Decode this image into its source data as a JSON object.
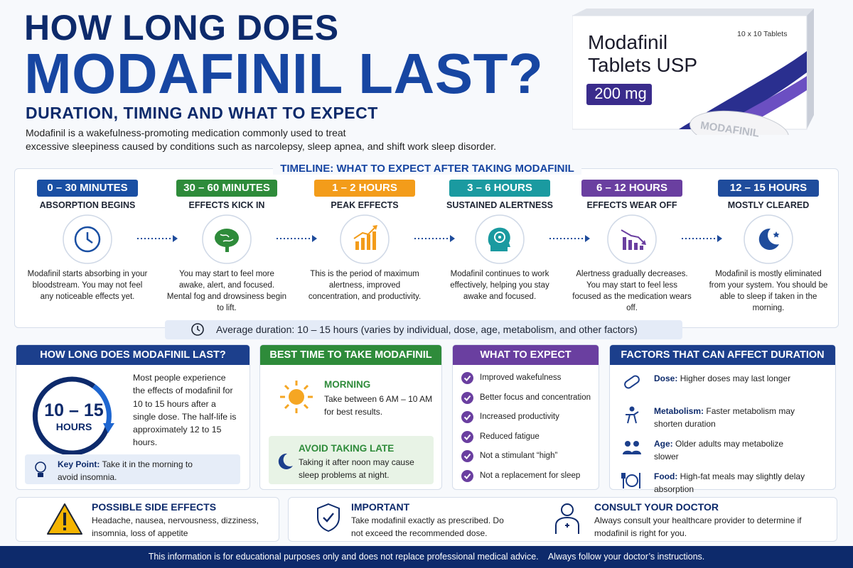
{
  "header": {
    "title_line1": "HOW LONG DOES",
    "title_line2": "MODAFINIL LAST?",
    "subtitle": "DURATION, TIMING AND WHAT TO EXPECT",
    "intro_lines": [
      "Modafinil is a wakefulness-promoting medication commonly used to treat",
      "excessive sleepiness caused by conditions such as narcolepsy, sleep apnea, and shift work sleep disorder."
    ]
  },
  "product": {
    "name_lines": [
      "Modafinil",
      "Tablets USP"
    ],
    "strength": "200 mg",
    "pack": "10 x 10 Tablets",
    "pill": "MODAFINIL"
  },
  "timeline": {
    "title": "TIMELINE: WHAT TO EXPECT AFTER TAKING MODAFINIL",
    "stages": [
      {
        "time": "0 – 30 MINUTES",
        "heading": "ABSORPTION BEGINS",
        "text": "Modafinil starts absorbing in your bloodstream. You may not feel any noticeable effects yet."
      },
      {
        "time": "30 – 60 MINUTES",
        "heading": "EFFECTS KICK IN",
        "text": "You may start to feel more awake, alert, and focused. Mental fog and drowsiness begin to lift."
      },
      {
        "time": "1 – 2 HOURS",
        "heading": "PEAK EFFECTS",
        "text": "This is the period of maximum alertness, improved concentration, and productivity."
      },
      {
        "time": "3 – 6 HOURS",
        "heading": "SUSTAINED ALERTNESS",
        "text": "Modafinil continues to work effectively, helping you stay awake and focused."
      },
      {
        "time": "6 – 12 HOURS",
        "heading": "EFFECTS WEAR OFF",
        "text": "Alertness gradually decreases. You may start to feel less focused as the medication wears off."
      },
      {
        "time": "12 – 15 HOURS",
        "heading": "MOSTLY CLEARED",
        "text": "Modafinil is mostly eliminated from your system. You should be able to sleep if taken in the morning."
      }
    ],
    "average": "Average duration: 10 – 15 hours (varies by individual, dose, age, metabolism, and other factors)"
  },
  "panels": {
    "duration": {
      "title": "HOW LONG DOES MODAFINIL LAST?",
      "big": "10 – 15",
      "unit": "HOURS",
      "text": "Most people experience the effects of modafinil for 10 to 15 hours after a single dose. The half-life is approximately 12 to 15 hours.",
      "key_label": "Key Point:",
      "key_text": "Take it in the morning to avoid insomnia."
    },
    "best_time": {
      "title": "BEST TIME TO TAKE MODAFINIL",
      "morning_title": "MORNING",
      "morning_text": "Take between 6 AM – 10 AM for best results.",
      "late_title": "AVOID TAKING LATE",
      "late_text": "Taking it after noon may cause sleep problems at night."
    },
    "expect": {
      "title": "WHAT TO EXPECT",
      "items": [
        "Improved wakefulness",
        "Better focus and concentration",
        "Increased productivity",
        "Reduced fatigue",
        "Not a stimulant “high”",
        "Not a replacement for sleep"
      ]
    },
    "factors": {
      "title": "FACTORS THAT CAN AFFECT DURATION",
      "items": [
        {
          "label": "Dose:",
          "text": "Higher doses may last longer"
        },
        {
          "label": "Metabolism:",
          "text": "Faster metabolism may shorten duration"
        },
        {
          "label": "Age:",
          "text": "Older adults may metabolize slower"
        },
        {
          "label": "Food:",
          "text": "High-fat meals may slightly delay absorption"
        }
      ]
    }
  },
  "notices": {
    "side_effects": {
      "title": "POSSIBLE SIDE EFFECTS",
      "text": "Headache, nausea, nervousness, dizziness, insomnia, loss of appetite"
    },
    "important": {
      "title": "IMPORTANT",
      "text": "Take modafinil exactly as prescribed. Do not exceed the recommended dose."
    },
    "doctor": {
      "title": "CONSULT YOUR DOCTOR",
      "text": "Always consult your healthcare provider to determine if modafinil is right for you."
    }
  },
  "footer": {
    "text": "This information is for educational purposes only and does not replace professional medical advice.    Always follow your doctor’s instructions."
  }
}
